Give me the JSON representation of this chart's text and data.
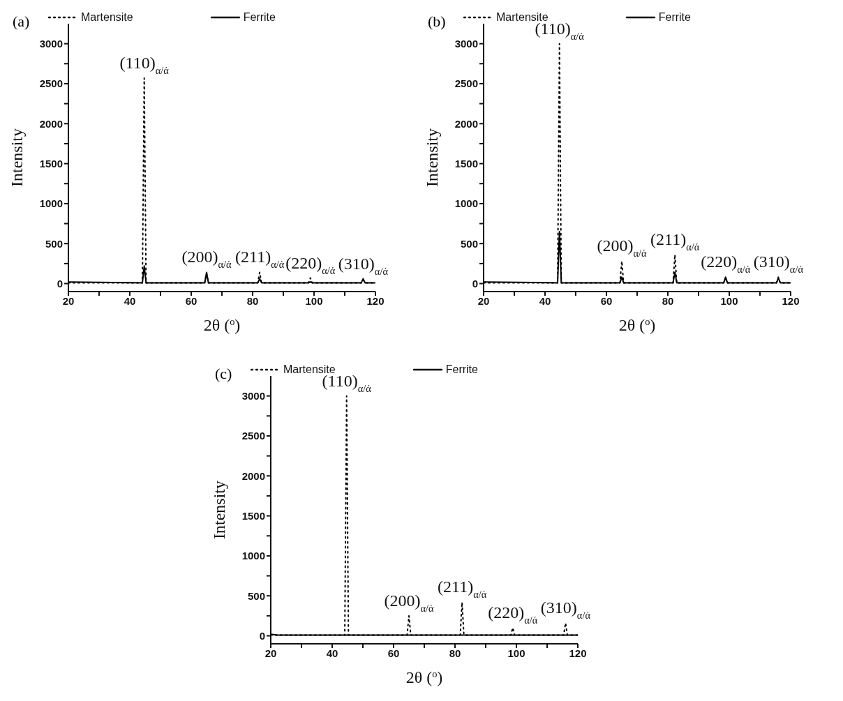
{
  "chart_data": [
    {
      "type": "line",
      "title": "(a)",
      "xlabel": "2θ ($^{o}$)",
      "ylabel": "Intensity",
      "xlim": [
        20,
        120
      ],
      "ylim": [
        -100,
        3250
      ],
      "xticks": [
        20,
        {
          "value": 30,
          "label": null
        },
        40,
        {
          "value": 50,
          "label": null
        },
        60,
        {
          "value": 70,
          "label": null
        },
        80,
        {
          "value": 90,
          "label": null
        },
        100,
        {
          "value": 110,
          "label": null
        },
        120
      ],
      "yticks": [
        0,
        {
          "value": 250,
          "label": null
        },
        500,
        {
          "value": 750,
          "label": null
        },
        1000,
        {
          "value": 1250,
          "label": null
        },
        1500,
        {
          "value": 1750,
          "label": null
        },
        2000,
        {
          "value": 2250,
          "label": null
        },
        2500,
        {
          "value": 2750,
          "label": null
        },
        3000
      ],
      "legend": "top",
      "grid": false,
      "series": [
        {
          "name": "Martensite",
          "color": "#000000",
          "line_style": "dotted",
          "x": [
            20,
            44.1,
            44.7,
            45.3,
            64.4,
            65,
            65.6,
            81.7,
            82.3,
            82.9,
            98.2,
            98.8,
            99.4,
            115.4,
            116,
            116.6,
            120
          ],
          "values": [
            10,
            10,
            2570,
            10,
            10,
            130,
            10,
            10,
            140,
            10,
            10,
            70,
            10,
            10,
            50,
            10,
            10
          ]
        },
        {
          "name": "Ferrite",
          "color": "#000000",
          "line_style": "solid",
          "x": [
            20,
            44.1,
            44.7,
            45.3,
            64.4,
            65,
            65.6,
            81.7,
            82.3,
            82.9,
            98.2,
            98.8,
            99.4,
            115.4,
            116,
            116.6,
            120
          ],
          "values": [
            20,
            10,
            220,
            10,
            10,
            140,
            10,
            10,
            60,
            10,
            10,
            20,
            10,
            10,
            60,
            10,
            10
          ]
        }
      ],
      "annotations": [
        {
          "text": "(110)$_{α/ά}$",
          "x": 44.7,
          "y": 2570
        },
        {
          "text": "(200)$_{α/ά}$",
          "x": 65,
          "y": 140
        },
        {
          "text": "(211)$_{α/ά}$",
          "x": 82.3,
          "y": 140
        },
        {
          "text": "(220)$_{α/ά}$",
          "x": 98.8,
          "y": 70
        },
        {
          "text": "(310)$_{α/ά}$",
          "x": 116,
          "y": 60
        }
      ]
    },
    {
      "type": "line",
      "title": "(b)",
      "xlabel": "2θ ($^{o}$)",
      "ylabel": "Intensity",
      "xlim": [
        20,
        120
      ],
      "ylim": [
        -100,
        3250
      ],
      "xticks": [
        20,
        {
          "value": 30,
          "label": null
        },
        40,
        {
          "value": 50,
          "label": null
        },
        60,
        {
          "value": 70,
          "label": null
        },
        80,
        {
          "value": 90,
          "label": null
        },
        100,
        {
          "value": 110,
          "label": null
        },
        120
      ],
      "yticks": [
        0,
        {
          "value": 250,
          "label": null
        },
        500,
        {
          "value": 750,
          "label": null
        },
        1000,
        {
          "value": 1250,
          "label": null
        },
        1500,
        {
          "value": 1750,
          "label": null
        },
        2000,
        {
          "value": 2250,
          "label": null
        },
        2500,
        {
          "value": 2750,
          "label": null
        },
        3000
      ],
      "legend": "top",
      "grid": false,
      "series": [
        {
          "name": "Martensite",
          "color": "#000000",
          "line_style": "dotted",
          "x": [
            20,
            44.1,
            44.7,
            45.3,
            64.4,
            65,
            65.6,
            81.7,
            82.3,
            82.9,
            98.2,
            98.8,
            99.4,
            115.4,
            116,
            116.6,
            120
          ],
          "values": [
            10,
            10,
            3000,
            10,
            10,
            280,
            10,
            10,
            360,
            10,
            10,
            60,
            10,
            10,
            80,
            10,
            10
          ]
        },
        {
          "name": "Ferrite",
          "color": "#000000",
          "line_style": "solid",
          "x": [
            20,
            44.1,
            44.7,
            45.3,
            64.4,
            65,
            65.6,
            81.7,
            82.3,
            82.9,
            98.2,
            98.8,
            99.4,
            115.4,
            116,
            116.6,
            120
          ],
          "values": [
            20,
            10,
            650,
            10,
            10,
            80,
            10,
            10,
            140,
            10,
            10,
            80,
            10,
            10,
            70,
            10,
            10
          ]
        }
      ],
      "annotations": [
        {
          "text": "(110)$_{α/ά}$",
          "x": 44.7,
          "y": 3000
        },
        {
          "text": "(200)$_{α/ά}$",
          "x": 65,
          "y": 280
        },
        {
          "text": "(211)$_{α/ά}$",
          "x": 82.3,
          "y": 360
        },
        {
          "text": "(220)$_{α/ά}$",
          "x": 98.8,
          "y": 80
        },
        {
          "text": "(310)$_{α/ά}$",
          "x": 116,
          "y": 80
        }
      ]
    },
    {
      "type": "line",
      "title": "(c)",
      "xlabel": "2θ ($^{o}$)",
      "ylabel": "Intensity",
      "xlim": [
        20,
        120
      ],
      "ylim": [
        -100,
        3250
      ],
      "xticks": [
        20,
        {
          "value": 30,
          "label": null
        },
        40,
        {
          "value": 50,
          "label": null
        },
        60,
        {
          "value": 70,
          "label": null
        },
        80,
        {
          "value": 90,
          "label": null
        },
        100,
        {
          "value": 110,
          "label": null
        },
        120
      ],
      "yticks": [
        0,
        {
          "value": 250,
          "label": null
        },
        500,
        {
          "value": 750,
          "label": null
        },
        1000,
        {
          "value": 1250,
          "label": null
        },
        1500,
        {
          "value": 1750,
          "label": null
        },
        2000,
        {
          "value": 2250,
          "label": null
        },
        2500,
        {
          "value": 2750,
          "label": null
        },
        3000
      ],
      "legend": "top",
      "grid": false,
      "series": [
        {
          "name": "Martensite",
          "color": "#000000",
          "line_style": "dotted",
          "x": [
            20,
            44.1,
            44.7,
            45.3,
            64.4,
            65,
            65.6,
            81.7,
            82.3,
            82.9,
            98.2,
            98.8,
            99.4,
            115.4,
            116,
            116.6,
            120
          ],
          "values": [
            10,
            10,
            3000,
            10,
            10,
            250,
            10,
            10,
            420,
            10,
            10,
            100,
            10,
            10,
            160,
            10,
            10
          ]
        },
        {
          "name": "Ferrite",
          "color": "#000000",
          "line_style": "solid",
          "x": [
            20,
            22,
            34,
            120
          ],
          "values": [
            20,
            10,
            10,
            10
          ]
        }
      ],
      "annotations": [
        {
          "text": "(110)$_{α/ά}$",
          "x": 44.7,
          "y": 3000
        },
        {
          "text": "(200)$_{α/ά}$",
          "x": 65,
          "y": 250
        },
        {
          "text": "(211)$_{α/ά}$",
          "x": 82.3,
          "y": 420
        },
        {
          "text": "(220)$_{α/ά}$",
          "x": 98.8,
          "y": 100
        },
        {
          "text": "(310)$_{α/ά}$",
          "x": 116,
          "y": 160
        }
      ]
    }
  ]
}
